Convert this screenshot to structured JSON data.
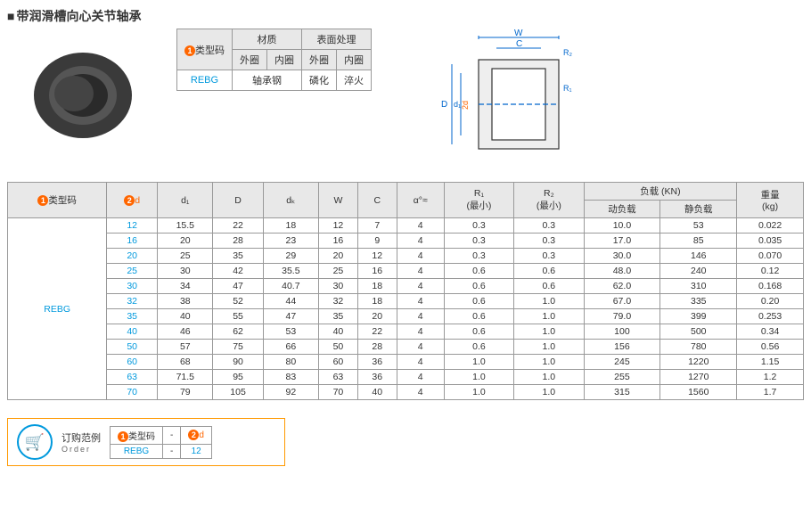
{
  "title": "带润滑槽向心关节轴承",
  "topTable": {
    "typeLabel": "类型码",
    "headers": {
      "material": "材质",
      "surface": "表面处理",
      "outer": "外圈",
      "inner": "内圈"
    },
    "code": "REBG",
    "materialVal": "轴承钢",
    "surfaceOuter": "磷化",
    "surfaceInner": "淬火"
  },
  "diagram": {
    "labels": [
      "W",
      "C",
      "R₂",
      "R₁",
      "D",
      "d₁",
      "2d",
      "dₖ",
      "α"
    ]
  },
  "mainTable": {
    "headers": {
      "type": "类型码",
      "d": "d",
      "d1": "d₁",
      "D": "D",
      "dk": "dₖ",
      "W": "W",
      "C": "C",
      "alpha": "α°≈",
      "r1": "R₁",
      "r1sub": "(最小)",
      "r2": "R₂",
      "r2sub": "(最小)",
      "load": "负载 (KN)",
      "loadDyn": "动负载",
      "loadStatic": "静负载",
      "weight": "重量",
      "weightUnit": "(kg)"
    },
    "typeCode": "REBG",
    "rows": [
      {
        "d": "12",
        "d1": "15.5",
        "D": "22",
        "dk": "18",
        "W": "12",
        "C": "7",
        "a": "4",
        "r1": "0.3",
        "r2": "0.3",
        "ld": "10.0",
        "ls": "53",
        "wt": "0.022"
      },
      {
        "d": "16",
        "d1": "20",
        "D": "28",
        "dk": "23",
        "W": "16",
        "C": "9",
        "a": "4",
        "r1": "0.3",
        "r2": "0.3",
        "ld": "17.0",
        "ls": "85",
        "wt": "0.035"
      },
      {
        "d": "20",
        "d1": "25",
        "D": "35",
        "dk": "29",
        "W": "20",
        "C": "12",
        "a": "4",
        "r1": "0.3",
        "r2": "0.3",
        "ld": "30.0",
        "ls": "146",
        "wt": "0.070"
      },
      {
        "d": "25",
        "d1": "30",
        "D": "42",
        "dk": "35.5",
        "W": "25",
        "C": "16",
        "a": "4",
        "r1": "0.6",
        "r2": "0.6",
        "ld": "48.0",
        "ls": "240",
        "wt": "0.12"
      },
      {
        "d": "30",
        "d1": "34",
        "D": "47",
        "dk": "40.7",
        "W": "30",
        "C": "18",
        "a": "4",
        "r1": "0.6",
        "r2": "0.6",
        "ld": "62.0",
        "ls": "310",
        "wt": "0.168"
      },
      {
        "d": "32",
        "d1": "38",
        "D": "52",
        "dk": "44",
        "W": "32",
        "C": "18",
        "a": "4",
        "r1": "0.6",
        "r2": "1.0",
        "ld": "67.0",
        "ls": "335",
        "wt": "0.20"
      },
      {
        "d": "35",
        "d1": "40",
        "D": "55",
        "dk": "47",
        "W": "35",
        "C": "20",
        "a": "4",
        "r1": "0.6",
        "r2": "1.0",
        "ld": "79.0",
        "ls": "399",
        "wt": "0.253"
      },
      {
        "d": "40",
        "d1": "46",
        "D": "62",
        "dk": "53",
        "W": "40",
        "C": "22",
        "a": "4",
        "r1": "0.6",
        "r2": "1.0",
        "ld": "100",
        "ls": "500",
        "wt": "0.34"
      },
      {
        "d": "50",
        "d1": "57",
        "D": "75",
        "dk": "66",
        "W": "50",
        "C": "28",
        "a": "4",
        "r1": "0.6",
        "r2": "1.0",
        "ld": "156",
        "ls": "780",
        "wt": "0.56"
      },
      {
        "d": "60",
        "d1": "68",
        "D": "90",
        "dk": "80",
        "W": "60",
        "C": "36",
        "a": "4",
        "r1": "1.0",
        "r2": "1.0",
        "ld": "245",
        "ls": "1220",
        "wt": "1.15"
      },
      {
        "d": "63",
        "d1": "71.5",
        "D": "95",
        "dk": "83",
        "W": "63",
        "C": "36",
        "a": "4",
        "r1": "1.0",
        "r2": "1.0",
        "ld": "255",
        "ls": "1270",
        "wt": "1.2"
      },
      {
        "d": "70",
        "d1": "79",
        "D": "105",
        "dk": "92",
        "W": "70",
        "C": "40",
        "a": "4",
        "r1": "1.0",
        "r2": "1.0",
        "ld": "315",
        "ls": "1560",
        "wt": "1.7"
      }
    ]
  },
  "order": {
    "label": "订购范例",
    "sub": "Order",
    "typeLabel": "类型码",
    "dLabel": "d",
    "sep": "-",
    "typeVal": "REBG",
    "dVal": "12"
  }
}
